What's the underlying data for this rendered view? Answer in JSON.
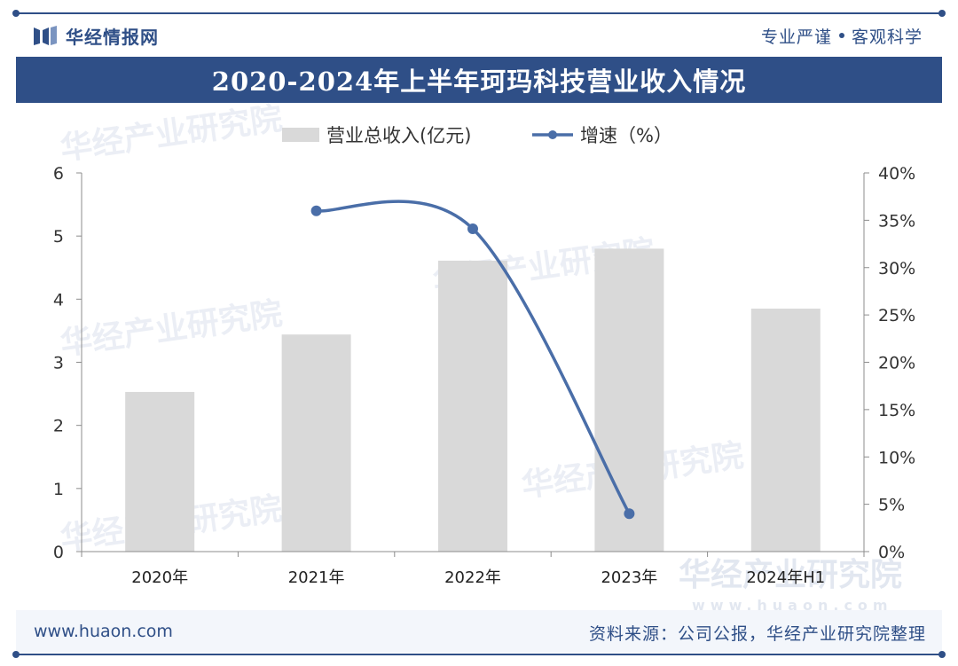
{
  "header": {
    "brand": "华经情报网",
    "slogan_left": "专业严谨",
    "slogan_right": "客观科学"
  },
  "chart_data": {
    "type": "bar",
    "title": "2020-2024年上半年珂玛科技营业收入情况",
    "categories": [
      "2020年",
      "2021年",
      "2022年",
      "2023年",
      "2024年H1"
    ],
    "series": [
      {
        "name": "营业总收入(亿元)",
        "type": "bar",
        "axis": "left",
        "color": "#d9d9d9",
        "values": [
          2.53,
          3.44,
          4.61,
          4.8,
          3.85
        ]
      },
      {
        "name": "增速（%）",
        "type": "line",
        "axis": "right",
        "color": "#4a6ea8",
        "values": [
          null,
          36.0,
          34.1,
          4.0,
          null
        ]
      }
    ],
    "y_left": {
      "ylim": [
        0,
        6
      ],
      "ticks": [
        "0",
        "1",
        "2",
        "3",
        "4",
        "5",
        "6"
      ]
    },
    "y_right": {
      "ylim": [
        0,
        40
      ],
      "ticks": [
        "0%",
        "5%",
        "10%",
        "15%",
        "20%",
        "25%",
        "30%",
        "35%",
        "40%"
      ]
    },
    "legend": "top-center",
    "grid": false
  },
  "watermark": {
    "text": "华经产业研究院",
    "url": "www.huaon.com"
  },
  "footer": {
    "website": "www.huaon.com",
    "source": "资料来源：公司公报，华经产业研究院整理"
  }
}
